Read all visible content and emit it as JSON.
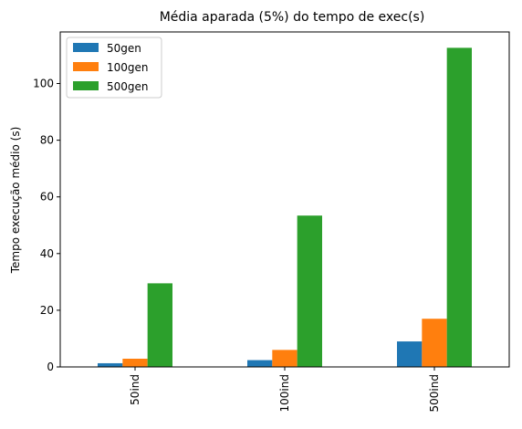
{
  "chart_data": {
    "type": "bar",
    "title": "Média aparada (5%) do tempo de exec(s)",
    "xlabel": "",
    "ylabel": "Tempo execução médio (s)",
    "categories": [
      "50ind",
      "100ind",
      "500ind"
    ],
    "series": [
      {
        "name": "50gen",
        "color": "#1f77b4",
        "values": [
          1.3,
          2.4,
          9.0
        ]
      },
      {
        "name": "100gen",
        "color": "#ff7f0e",
        "values": [
          2.9,
          6.0,
          17.0
        ]
      },
      {
        "name": "500gen",
        "color": "#2ca02c",
        "values": [
          29.5,
          53.4,
          112.6
        ]
      }
    ],
    "ylim": [
      0,
      118.2
    ],
    "yticks": [
      0,
      20,
      40,
      60,
      80,
      100
    ],
    "grid": false,
    "legend_position": "top-left"
  }
}
